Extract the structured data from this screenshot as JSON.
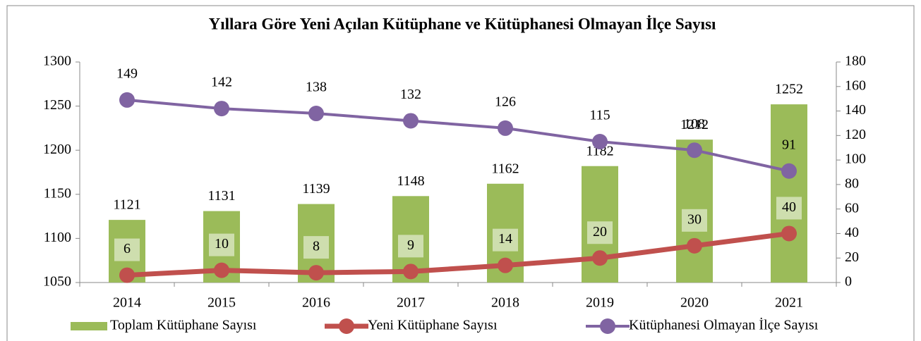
{
  "chart_data": {
    "type": "bar-line",
    "title": "Yıllara Göre Yeni Açılan Kütüphane ve Kütüphanesi Olmayan İlçe Sayısı",
    "categories": [
      "2014",
      "2015",
      "2016",
      "2017",
      "2018",
      "2019",
      "2020",
      "2021"
    ],
    "series": [
      {
        "name": "Toplam Kütüphane Sayısı",
        "type": "bar",
        "axis": "y",
        "color": "#9bbb59",
        "values": [
          1121,
          1131,
          1139,
          1148,
          1162,
          1182,
          1212,
          1252
        ]
      },
      {
        "name": "Yeni Kütüphane Sayısı",
        "type": "line",
        "axis": "y2",
        "color": "#c0504d",
        "values": [
          6,
          10,
          8,
          9,
          14,
          20,
          30,
          40
        ]
      },
      {
        "name": "Kütüphanesi Olmayan İlçe Sayısı",
        "type": "line",
        "axis": "y2",
        "color": "#8064a2",
        "values": [
          149,
          142,
          138,
          132,
          126,
          115,
          108,
          91
        ]
      }
    ],
    "ylim": [
      1050,
      1300
    ],
    "yticks": [
      1050,
      1100,
      1150,
      1200,
      1250,
      1300
    ],
    "y2lim": [
      0,
      180
    ],
    "y2ticks": [
      0,
      20,
      40,
      60,
      80,
      100,
      120,
      140,
      160,
      180
    ],
    "legend": "bottom"
  }
}
